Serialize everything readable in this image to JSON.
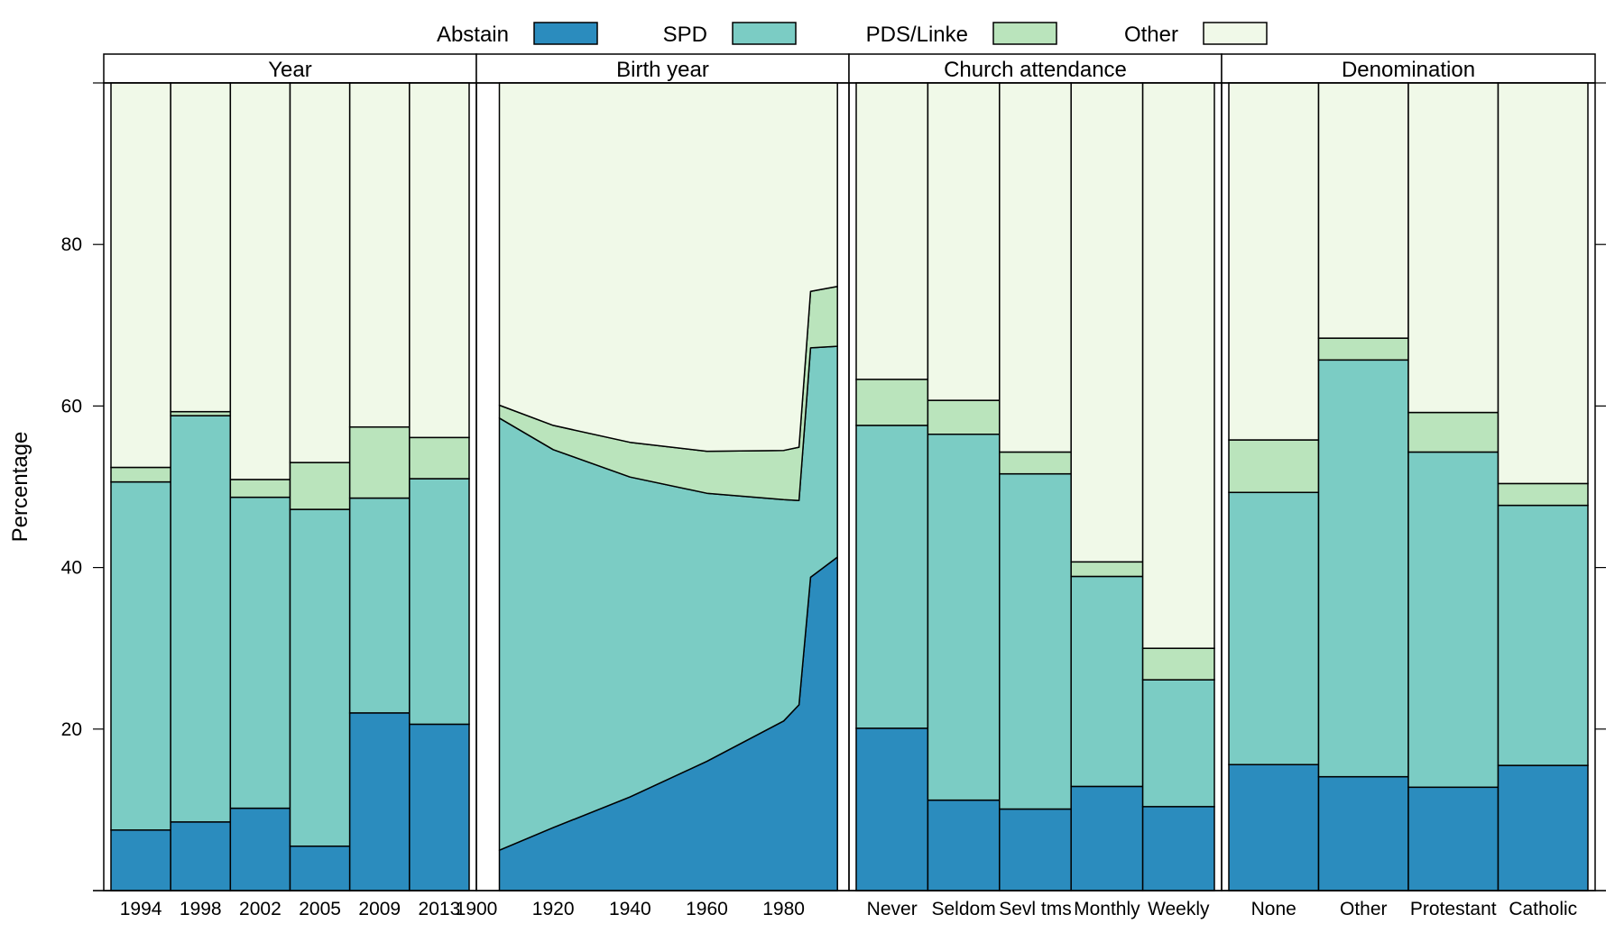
{
  "chart_data": {
    "type": "stacked-area-and-bar",
    "ylabel": "Percentage",
    "y_ticks": [
      "20",
      "40",
      "60",
      "80"
    ],
    "ylim": [
      0,
      100
    ],
    "legend": {
      "position": "top",
      "entries": [
        {
          "name": "Abstain",
          "color": "#2b8cbe"
        },
        {
          "name": "SPD",
          "color": "#7bccc4"
        },
        {
          "name": "PDS/Linke",
          "color": "#bae4bc"
        },
        {
          "name": "Other",
          "color": "#f0f9e8"
        }
      ]
    },
    "panels": [
      {
        "title": "Year",
        "kind": "bar",
        "categories": [
          "1994",
          "1998",
          "2002",
          "2005",
          "2009",
          "2013"
        ],
        "series": [
          {
            "name": "Abstain",
            "values": [
              7.5,
              8.5,
              10.2,
              5.5,
              22.0,
              20.6
            ]
          },
          {
            "name": "SPD",
            "values": [
              43.1,
              50.3,
              38.5,
              41.7,
              26.6,
              30.4
            ]
          },
          {
            "name": "PDS/Linke",
            "values": [
              1.8,
              0.5,
              2.2,
              5.8,
              8.8,
              5.1
            ]
          },
          {
            "name": "Other",
            "values": [
              47.6,
              40.7,
              49.1,
              47.0,
              42.6,
              43.9
            ]
          }
        ]
      },
      {
        "title": "Birth year",
        "kind": "area",
        "x_ticks": [
          "1900",
          "1920",
          "1940",
          "1960",
          "1980"
        ],
        "xlim": [
          1900,
          1997
        ],
        "x": [
          1906,
          1920,
          1940,
          1960,
          1980,
          1984,
          1987,
          1994
        ],
        "series": [
          {
            "name": "Abstain",
            "values": [
              5.0,
              7.8,
              11.6,
              16.0,
              21.0,
              23.0,
              38.8,
              41.3
            ]
          },
          {
            "name": "SPD",
            "values": [
              53.5,
              46.8,
              39.6,
              33.2,
              27.4,
              25.3,
              28.4,
              26.1
            ]
          },
          {
            "name": "PDS/Linke",
            "values": [
              1.6,
              3.0,
              4.3,
              5.2,
              6.1,
              6.6,
              7.0,
              7.4
            ]
          },
          {
            "name": "Other",
            "values": [
              39.9,
              42.4,
              44.5,
              45.6,
              45.5,
              45.1,
              25.8,
              25.2
            ]
          }
        ]
      },
      {
        "title": "Church attendance",
        "kind": "bar",
        "categories": [
          "Never",
          "Seldom",
          "Sevl tms",
          "Monthly",
          "Weekly"
        ],
        "series": [
          {
            "name": "Abstain",
            "values": [
              20.1,
              11.2,
              10.1,
              12.9,
              10.4
            ]
          },
          {
            "name": "SPD",
            "values": [
              37.5,
              45.3,
              41.5,
              26.0,
              15.7
            ]
          },
          {
            "name": "PDS/Linke",
            "values": [
              5.7,
              4.2,
              2.7,
              1.8,
              3.9
            ]
          },
          {
            "name": "Other",
            "values": [
              36.7,
              39.3,
              45.7,
              59.3,
              70.0
            ]
          }
        ]
      },
      {
        "title": "Denomination",
        "kind": "bar",
        "categories": [
          "None",
          "Other",
          "Protestant",
          "Catholic"
        ],
        "series": [
          {
            "name": "Abstain",
            "values": [
              15.6,
              14.1,
              12.8,
              15.5
            ]
          },
          {
            "name": "SPD",
            "values": [
              33.7,
              51.6,
              41.5,
              32.2
            ]
          },
          {
            "name": "PDS/Linke",
            "values": [
              6.5,
              2.7,
              4.9,
              2.7
            ]
          },
          {
            "name": "Other",
            "values": [
              44.2,
              31.6,
              40.8,
              49.6
            ]
          }
        ]
      }
    ]
  }
}
